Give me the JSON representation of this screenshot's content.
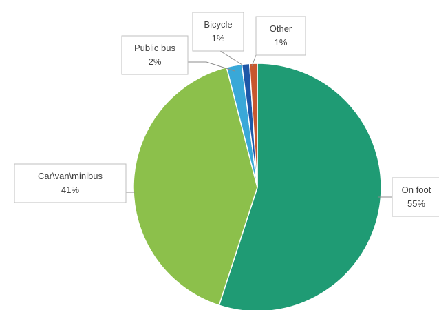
{
  "chart_data": {
    "type": "pie",
    "title": "",
    "start_angle_deg": 0,
    "direction": "clockwise",
    "slices": [
      {
        "name": "On foot",
        "value": 55,
        "label": "55%",
        "color": "#1f9b74"
      },
      {
        "name": "Car\\van\\minibus",
        "value": 41,
        "label": "41%",
        "color": "#8cc04b"
      },
      {
        "name": "Public bus",
        "value": 2,
        "label": "2%",
        "color": "#39a8d8"
      },
      {
        "name": "Bicycle",
        "value": 1,
        "label": "1%",
        "color": "#1e58a8"
      },
      {
        "name": "Other",
        "value": 1,
        "label": "1%",
        "color": "#c8572e"
      }
    ]
  }
}
